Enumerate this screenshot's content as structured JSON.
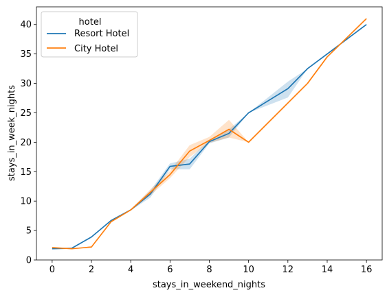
{
  "chart_data": {
    "type": "line",
    "xlabel": "stays_in_weekend_nights",
    "ylabel": "stays_in_week_nights",
    "xlim": [
      -0.8,
      16.8
    ],
    "ylim": [
      0,
      43
    ],
    "xticks": [
      0,
      2,
      4,
      6,
      8,
      10,
      12,
      14,
      16
    ],
    "yticks": [
      0,
      5,
      10,
      15,
      20,
      25,
      30,
      35,
      40
    ],
    "grid": false,
    "legend": {
      "title": "hotel",
      "placement": "top-left"
    },
    "series": [
      {
        "name": "Resort Hotel",
        "color": "#1f77b4",
        "x": [
          0,
          1,
          2,
          3,
          4,
          5,
          6,
          7,
          8,
          9,
          10,
          12,
          13,
          14,
          16
        ],
        "y": [
          1.9,
          2.0,
          3.9,
          6.7,
          8.5,
          11.2,
          15.9,
          16.3,
          20.1,
          21.5,
          25.0,
          29.1,
          32.5,
          35.0,
          40.0
        ],
        "ci_low": [
          1.85,
          1.95,
          3.8,
          6.6,
          8.4,
          10.6,
          15.4,
          15.4,
          19.8,
          20.8,
          25.0,
          27.6,
          32.5,
          35.0,
          40.0
        ],
        "ci_high": [
          1.95,
          2.05,
          4.0,
          6.8,
          8.6,
          11.8,
          16.4,
          17.2,
          20.4,
          22.2,
          25.0,
          30.3,
          32.5,
          35.0,
          40.0
        ]
      },
      {
        "name": "City Hotel",
        "color": "#ff7f0e",
        "x": [
          0,
          1,
          2,
          3,
          4,
          5,
          6,
          7,
          8,
          9,
          10,
          13,
          14,
          16
        ],
        "y": [
          2.1,
          1.9,
          2.2,
          6.5,
          8.5,
          11.5,
          14.5,
          18.5,
          20.3,
          22.2,
          20.0,
          30.0,
          34.5,
          41.0
        ],
        "ci_low": [
          2.05,
          1.85,
          2.15,
          6.4,
          8.4,
          11.0,
          13.9,
          17.5,
          19.9,
          20.8,
          20.0,
          30.0,
          34.5,
          41.0
        ],
        "ci_high": [
          2.15,
          1.95,
          2.25,
          6.6,
          8.6,
          12.0,
          15.1,
          19.5,
          20.9,
          23.8,
          20.0,
          30.0,
          34.5,
          41.0
        ]
      }
    ]
  }
}
